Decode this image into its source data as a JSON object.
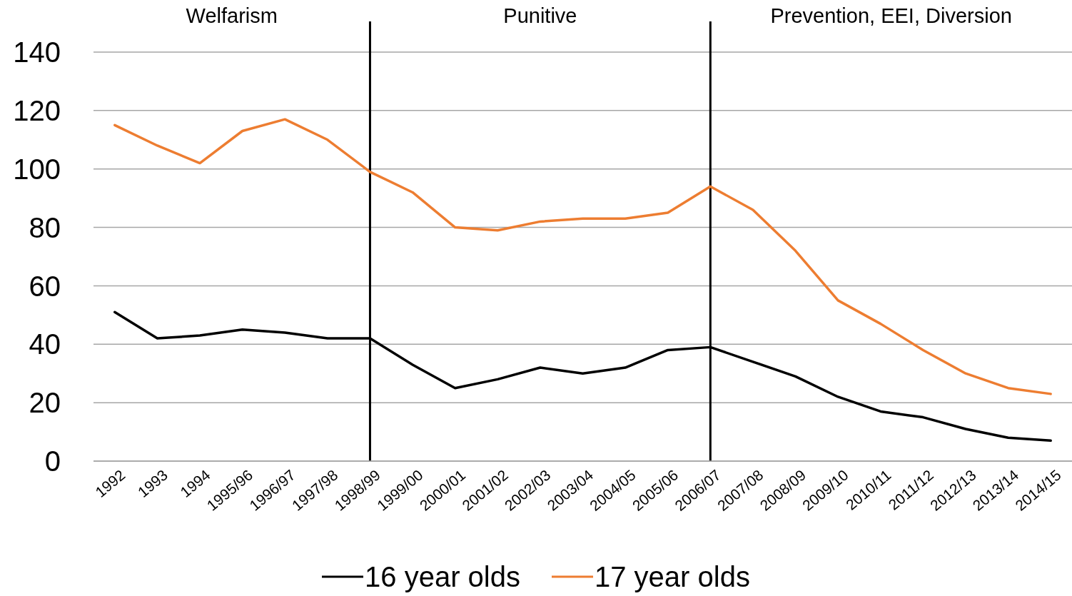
{
  "chart_data": {
    "type": "line",
    "categories": [
      "1992",
      "1993",
      "1994",
      "1995/96",
      "1996/97",
      "1997/98",
      "1998/99",
      "1999/00",
      "2000/01",
      "2001/02",
      "2002/03",
      "2003/04",
      "2004/05",
      "2005/06",
      "2006/07",
      "2007/08",
      "2008/09",
      "2009/10",
      "2010/11",
      "2011/12",
      "2012/13",
      "2013/14",
      "2014/15"
    ],
    "series": [
      {
        "name": "16 year olds",
        "color": "#000000",
        "values": [
          51,
          42,
          43,
          45,
          44,
          42,
          42,
          33,
          25,
          28,
          32,
          30,
          32,
          38,
          39,
          34,
          29,
          22,
          17,
          15,
          11,
          8,
          7
        ]
      },
      {
        "name": "17 year olds",
        "color": "#ed7d31",
        "values": [
          115,
          108,
          102,
          113,
          117,
          110,
          99,
          92,
          80,
          79,
          82,
          83,
          83,
          85,
          94,
          86,
          72,
          55,
          47,
          38,
          30,
          25,
          23
        ]
      }
    ],
    "ylim": [
      0,
      140
    ],
    "yticks": [
      0,
      20,
      40,
      60,
      80,
      100,
      120,
      140
    ],
    "grid": "y",
    "legend": "bottom",
    "marker": "none",
    "line_style": "solid",
    "ref_lines": [
      {
        "axis": "x",
        "value": "1998/99",
        "color": "#000000"
      },
      {
        "axis": "x",
        "value": "2006/07",
        "color": "#000000"
      }
    ],
    "annotations": [
      "Welfarism",
      "Punitive",
      "Prevention, EEI, Diversion"
    ]
  }
}
